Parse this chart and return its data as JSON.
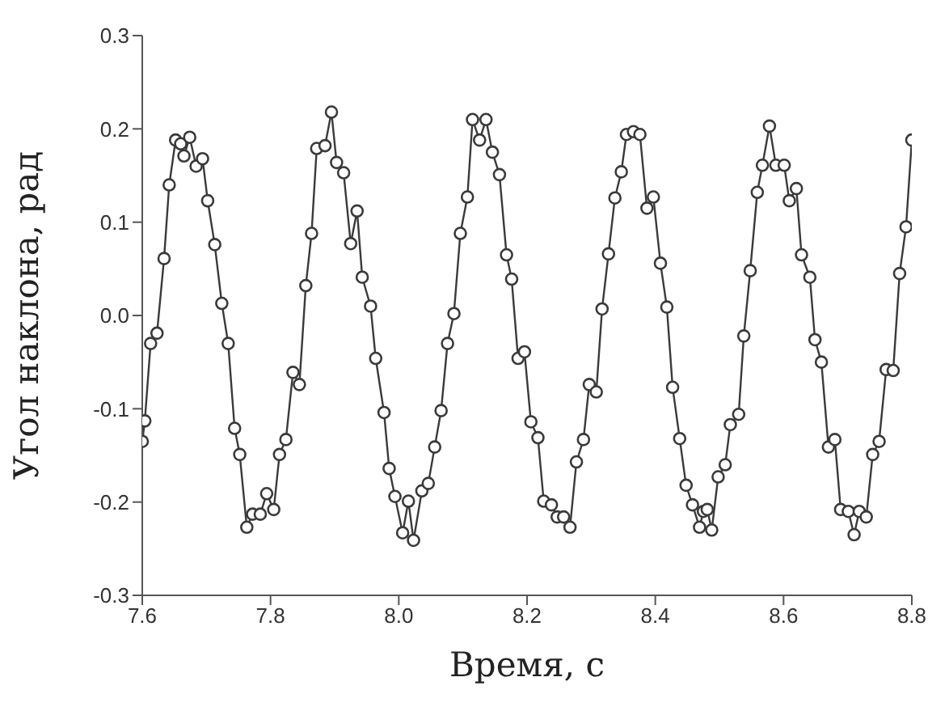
{
  "chart_data": {
    "type": "line",
    "xlabel": "Время, с",
    "ylabel": "Угол наклона, рад",
    "x": [
      7.6,
      7.604,
      7.613,
      7.623,
      7.634,
      7.642,
      7.652,
      7.66,
      7.665,
      7.674,
      7.684,
      7.694,
      7.702,
      7.713,
      7.724,
      7.734,
      7.744,
      7.752,
      7.763,
      7.772,
      7.784,
      7.794,
      7.805,
      7.814,
      7.824,
      7.835,
      7.845,
      7.855,
      7.864,
      7.872,
      7.885,
      7.895,
      7.903,
      7.914,
      7.925,
      7.935,
      7.943,
      7.956,
      7.964,
      7.977,
      7.985,
      7.994,
      8.006,
      8.015,
      8.023,
      8.036,
      8.046,
      8.056,
      8.066,
      8.076,
      8.086,
      8.096,
      8.107,
      8.115,
      8.126,
      8.136,
      8.146,
      8.157,
      8.168,
      8.176,
      8.186,
      8.196,
      8.206,
      8.217,
      8.226,
      8.238,
      8.247,
      8.257,
      8.267,
      8.277,
      8.288,
      8.297,
      8.308,
      8.317,
      8.327,
      8.337,
      8.347,
      8.355,
      8.366,
      8.376,
      8.387,
      8.397,
      8.408,
      8.418,
      8.427,
      8.438,
      8.448,
      8.458,
      8.469,
      8.475,
      8.481,
      8.488,
      8.498,
      8.509,
      8.517,
      8.53,
      8.538,
      8.548,
      8.559,
      8.567,
      8.578,
      8.588,
      8.601,
      8.609,
      8.62,
      8.628,
      8.641,
      8.649,
      8.659,
      8.67,
      8.68,
      8.689,
      8.701,
      8.71,
      8.718,
      8.729,
      8.739,
      8.749,
      8.76,
      8.771,
      8.781,
      8.791,
      8.8
    ],
    "series": [
      {
        "color": "#3a3a3a",
        "values": [
          -0.135,
          -0.113,
          -0.03,
          -0.019,
          0.061,
          0.14,
          0.188,
          0.184,
          0.171,
          0.191,
          0.16,
          0.168,
          0.123,
          0.076,
          0.013,
          -0.03,
          -0.121,
          -0.149,
          -0.227,
          -0.213,
          -0.213,
          -0.191,
          -0.208,
          -0.149,
          -0.133,
          -0.061,
          -0.074,
          0.032,
          0.088,
          0.179,
          0.182,
          0.218,
          0.164,
          0.153,
          0.077,
          0.112,
          0.041,
          0.01,
          -0.046,
          -0.104,
          -0.164,
          -0.194,
          -0.233,
          -0.199,
          -0.241,
          -0.188,
          -0.18,
          -0.141,
          -0.102,
          -0.03,
          0.002,
          0.088,
          0.127,
          0.21,
          0.188,
          0.21,
          0.175,
          0.151,
          0.065,
          0.039,
          -0.046,
          -0.039,
          -0.114,
          -0.131,
          -0.199,
          -0.203,
          -0.216,
          -0.216,
          -0.227,
          -0.157,
          -0.133,
          -0.074,
          -0.082,
          0.007,
          0.066,
          0.126,
          0.154,
          0.194,
          0.197,
          0.194,
          0.115,
          0.127,
          0.056,
          0.009,
          -0.077,
          -0.132,
          -0.182,
          -0.203,
          -0.227,
          -0.21,
          -0.208,
          -0.23,
          -0.173,
          -0.16,
          -0.117,
          -0.106,
          -0.022,
          0.048,
          0.132,
          0.161,
          0.203,
          0.161,
          0.161,
          0.123,
          0.136,
          0.065,
          0.041,
          -0.026,
          -0.05,
          -0.141,
          -0.133,
          -0.208,
          -0.21,
          -0.235,
          -0.21,
          -0.216,
          -0.149,
          -0.135,
          -0.058,
          -0.059,
          0.045,
          0.095,
          0.188
        ]
      }
    ],
    "xlim": [
      7.6,
      8.8
    ],
    "xticks": [
      7.6,
      7.8,
      {
        "value": 8,
        "label": "8.0"
      },
      8.2,
      8.4,
      8.6,
      8.8
    ],
    "ylim": [
      -0.3,
      0.3
    ],
    "yticks": [
      -0.3,
      -0.2,
      -0.1,
      {
        "value": 0,
        "label": "0.0"
      },
      0.1,
      0.2,
      0.3
    ],
    "grid": false,
    "legend": false,
    "marker": "circle",
    "line_style": "solid"
  }
}
